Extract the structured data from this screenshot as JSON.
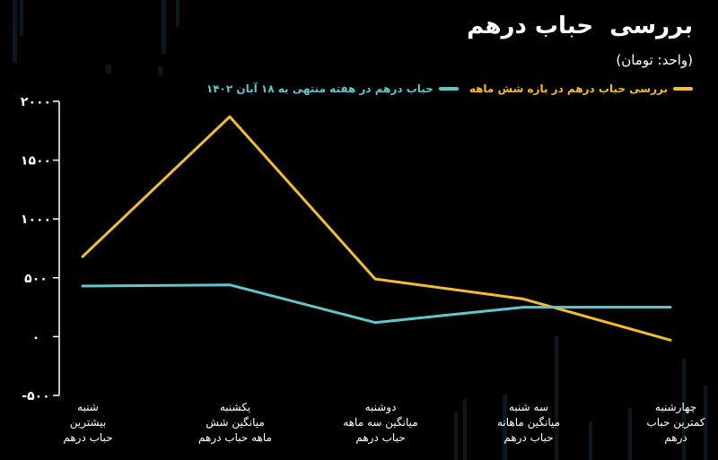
{
  "header": {
    "title": "بررسی  حباب درهم",
    "unit": "(واحد: تومان)"
  },
  "colors": {
    "background": "#000000",
    "axis": "#ffffff",
    "series_six_month": "#f5bd2a",
    "series_week": "#5ec8d0"
  },
  "chart_data": {
    "type": "line",
    "categories": [
      "شنبه\nبیشترین\nحباب درهم",
      "یکشنبه\nمیانگین شش\nماهه حباب درهم",
      "دوشنبه\nمیانگین سه ماهه\nحباب درهم",
      "سه شنبه\nمیانگین ماهانه\nحباب درهم",
      "چهارشنبه\nکمترین  حباب\nدرهم"
    ],
    "series": [
      {
        "name": "بررسی حباب درهم در بازه شش ماهه",
        "values": [
          680,
          1870,
          490,
          320,
          -30
        ]
      },
      {
        "name": "حباب درهم در هفته منتهی به ۱۸ آبان ۱۴۰۲",
        "values": [
          430,
          440,
          120,
          250,
          250
        ]
      }
    ],
    "yticks": [
      "-۵۰۰",
      "۰",
      "۵۰۰",
      "۱۰۰۰",
      "۱۵۰۰",
      "۲۰۰۰"
    ],
    "ytick_values": [
      -500,
      0,
      500,
      1000,
      1500,
      2000
    ],
    "ylim": [
      -500,
      2000
    ],
    "grid": false,
    "legend_position": "top-right"
  }
}
